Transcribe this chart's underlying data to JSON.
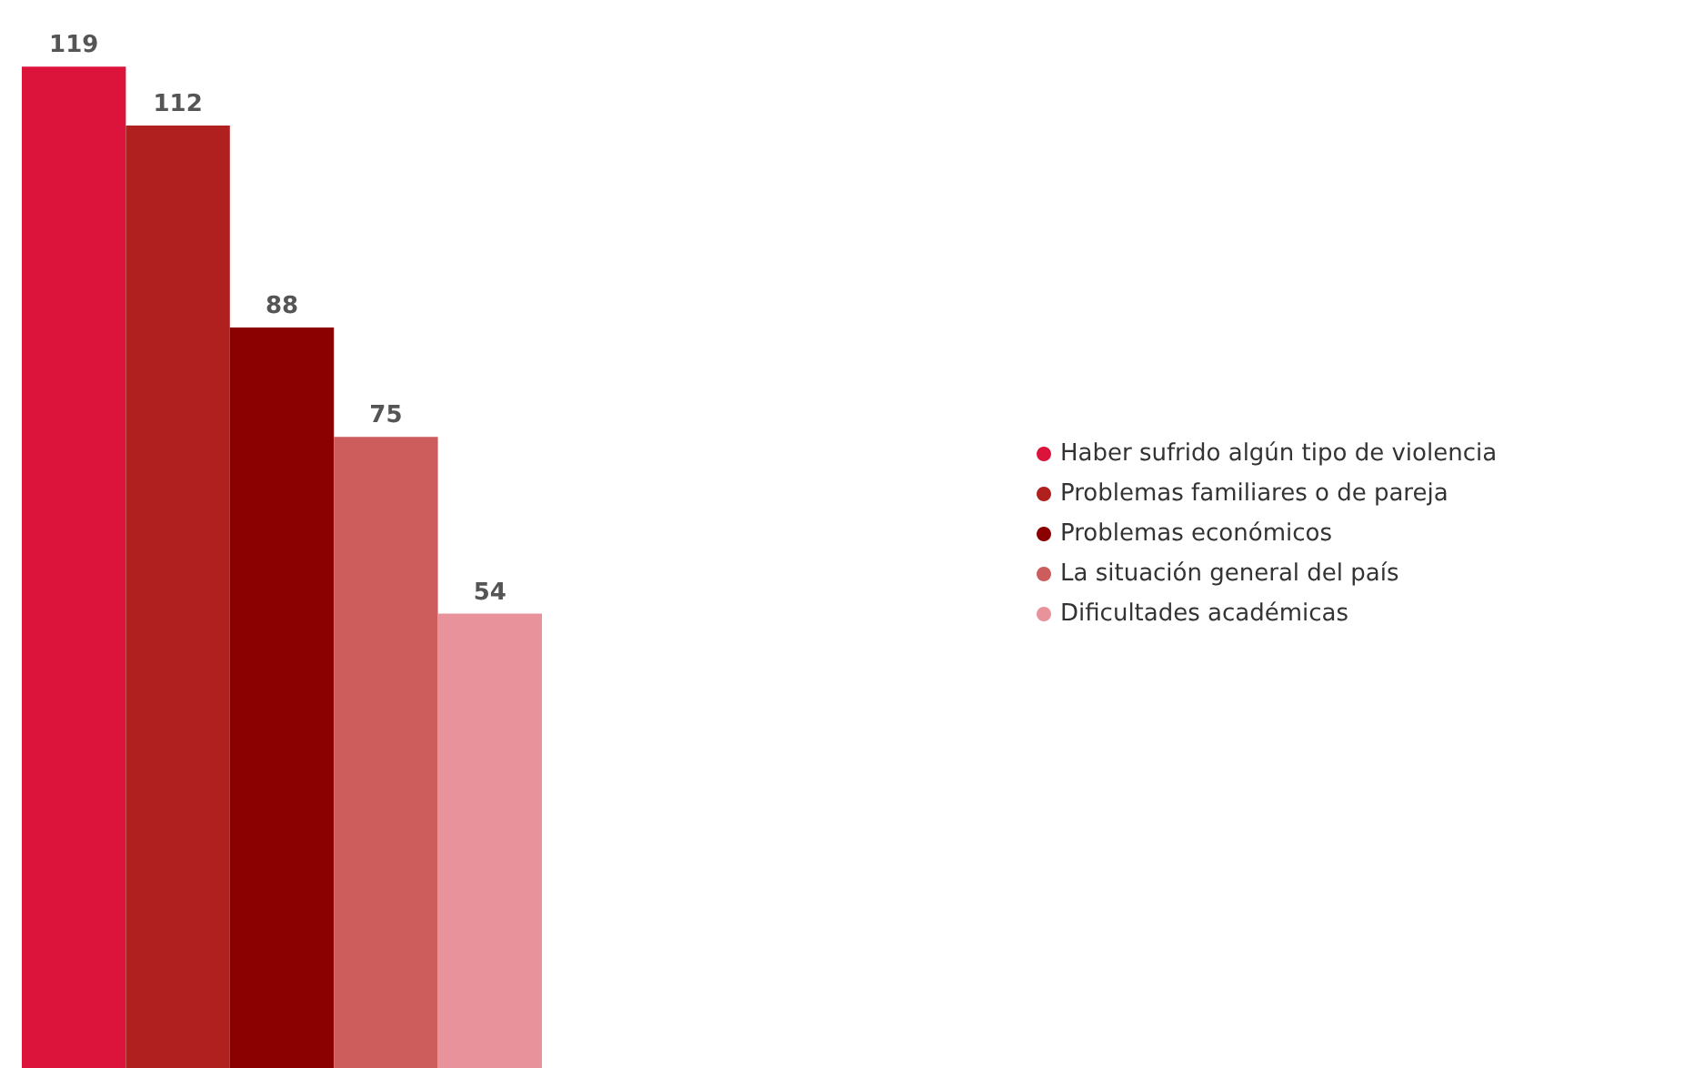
{
  "chart_data": {
    "type": "bar",
    "categories": [
      null
    ],
    "series": [
      {
        "name": "Haber sufrido algún tipo de violencia",
        "color": "#dc143c",
        "values": [
          119
        ]
      },
      {
        "name": "Problemas familiares o de pareja",
        "color": "#b0201f",
        "values": [
          112
        ]
      },
      {
        "name": "Problemas económicos",
        "color": "#8b0000",
        "values": [
          88
        ]
      },
      {
        "name": "La situación general del país",
        "color": "#cd5c5c",
        "values": [
          75
        ]
      },
      {
        "name": "Dificultades académicas",
        "color": "#e8939b",
        "values": [
          54
        ]
      }
    ],
    "data_labels": true,
    "legend": "right"
  }
}
